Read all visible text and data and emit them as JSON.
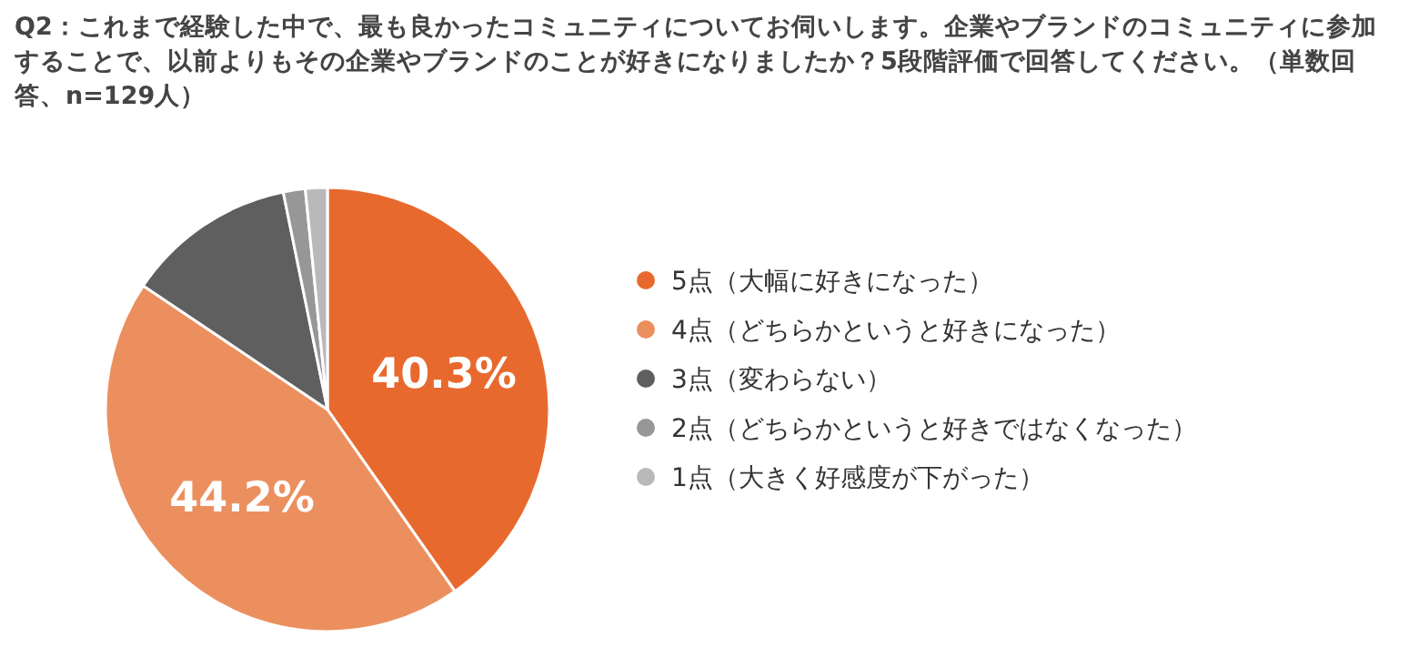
{
  "chart_data": {
    "type": "pie",
    "title": "Q2：これまで経験した中で、最も良かったコミュニティについてお伺いします。企業やブランドのコミュニティに参加することで、以前よりもその企業やブランドのことが好きになりましたか？5段階評価で回答してください。（単数回答、n=129人）",
    "categories": [
      "5点（大幅に好きになった）",
      "4点（どちらかというと好きになった）",
      "3点（変わらない）",
      "2点（どちらかというと好きではなくなった）",
      "1点（大きく好感度が下がった）"
    ],
    "values": [
      40.3,
      44.2,
      12.4,
      1.6,
      1.6
    ],
    "colors": [
      "#e8692e",
      "#ec8f5f",
      "#5f5f5f",
      "#979797",
      "#b9b9b9"
    ],
    "value_labels": [
      "40.3%",
      "44.2%",
      null,
      null,
      null
    ],
    "legend": "right"
  }
}
